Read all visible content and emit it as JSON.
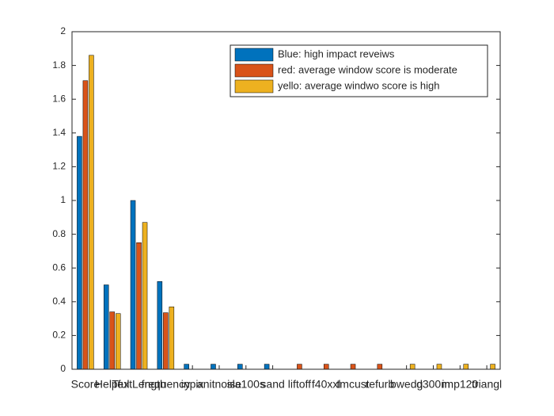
{
  "chart_data": {
    "type": "bar",
    "categories": [
      "Score",
      "Helpful",
      "TextLength",
      "frequency",
      "inpix",
      "anitnoise",
      "sla100s",
      "sand",
      "liftoff",
      "f40xxl",
      "tmcust",
      "refurb",
      "bwedg",
      "d300m",
      "imp120",
      "triangl"
    ],
    "series": [
      {
        "name": "Blue: high impact reveiws",
        "color": "#0072bd",
        "values": [
          1.38,
          0.5,
          1.0,
          0.52,
          0.03,
          0.03,
          0.03,
          0.03,
          0,
          0,
          0,
          0,
          0,
          0,
          0,
          0
        ]
      },
      {
        "name": "red: average window score is moderate",
        "color": "#d95319",
        "values": [
          1.71,
          0.34,
          0.75,
          0.335,
          0,
          0,
          0,
          0,
          0.03,
          0.03,
          0.03,
          0.03,
          0,
          0,
          0,
          0
        ]
      },
      {
        "name": "yello: average windwo score is high",
        "color": "#edb120",
        "values": [
          1.86,
          0.33,
          0.87,
          0.37,
          0,
          0,
          0,
          0,
          0,
          0,
          0,
          0,
          0.03,
          0.03,
          0.03,
          0.03
        ]
      }
    ],
    "ylim": [
      0,
      2
    ],
    "yticks": [
      0,
      0.2,
      0.4,
      0.6,
      0.8,
      1,
      1.2,
      1.4,
      1.6,
      1.8,
      2
    ],
    "legend": "top-right"
  }
}
